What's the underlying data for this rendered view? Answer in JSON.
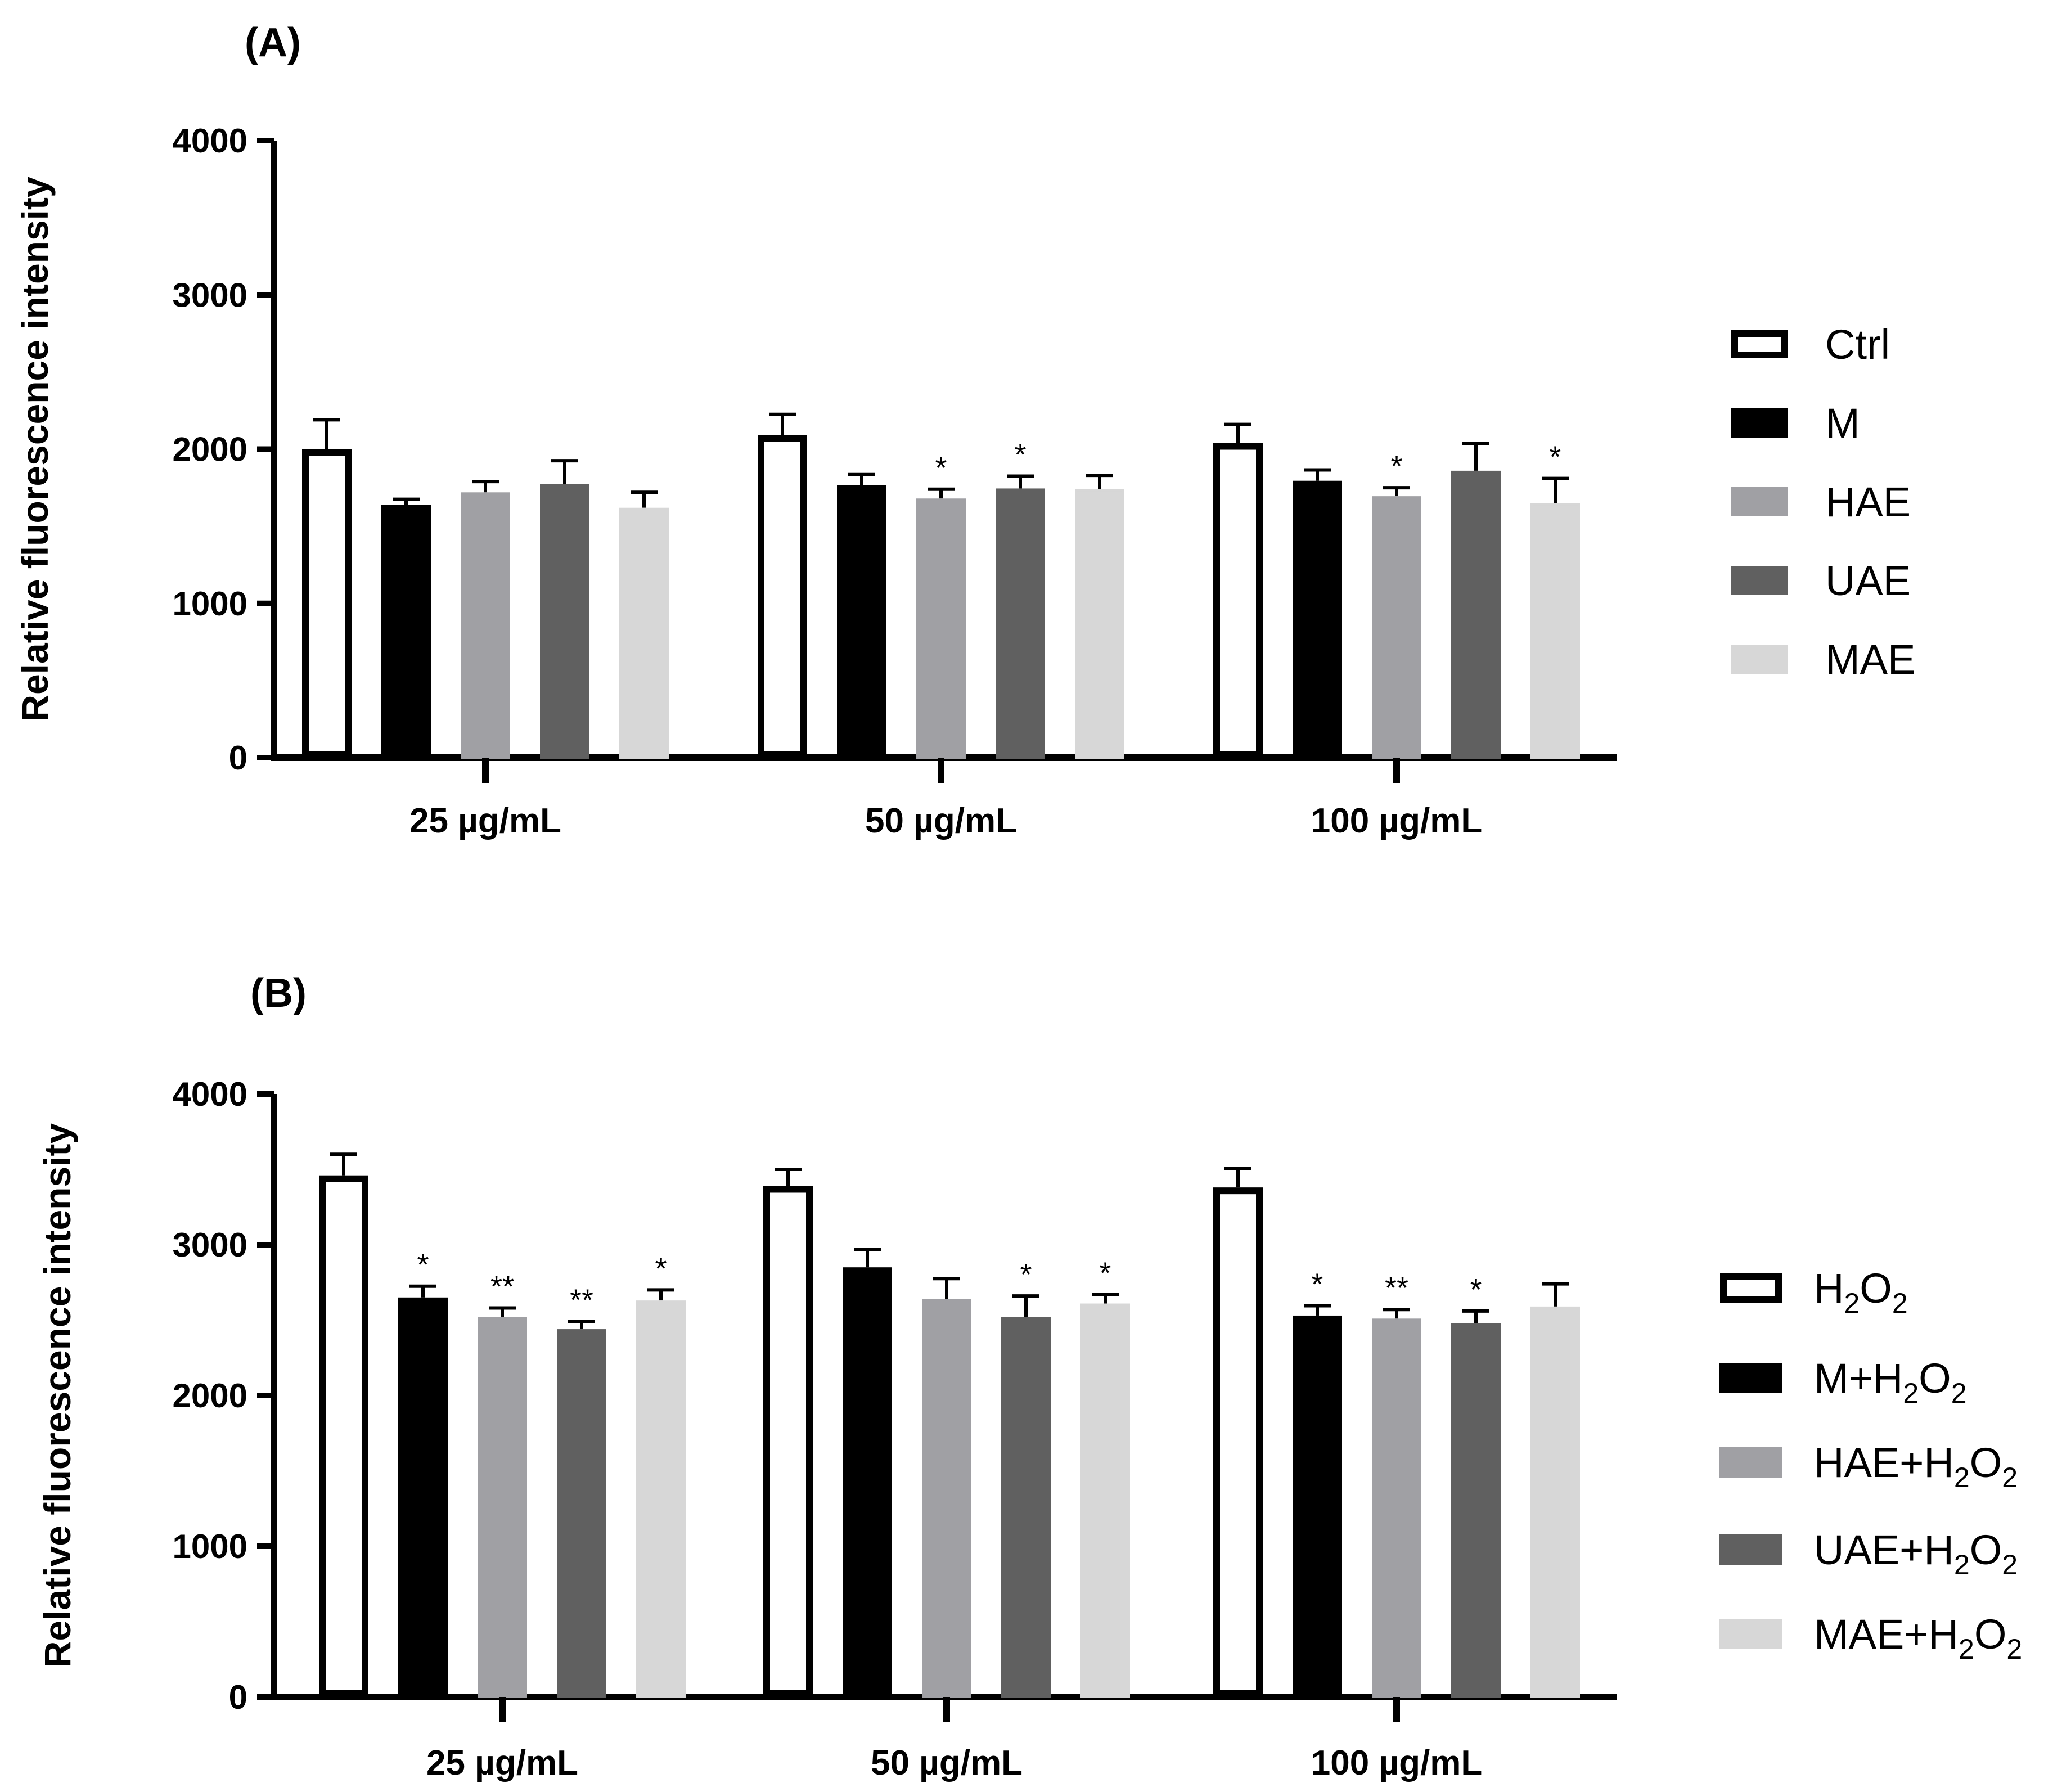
{
  "chart_data": [
    {
      "panel_label": "(A)",
      "type": "bar",
      "ylabel": "Relative  fluorescence intensity",
      "ylim": [
        0,
        4000
      ],
      "yticks": [
        0,
        1000,
        2000,
        3000,
        4000
      ],
      "categories": [
        "25 µg/mL",
        "50 µg/mL",
        "100 µg/mL"
      ],
      "legend_position": "right",
      "series": [
        {
          "name": "Ctrl",
          "sub": "",
          "tail": "",
          "fill": "#ffffff",
          "stroke": "#000000",
          "values": [
            2000,
            2090,
            2040
          ],
          "errors": [
            190,
            135,
            120
          ],
          "sig": [
            "",
            "",
            ""
          ]
        },
        {
          "name": "M",
          "sub": "",
          "tail": "",
          "fill": "#000000",
          "stroke": "#000000",
          "values": [
            1640,
            1765,
            1795
          ],
          "errors": [
            35,
            70,
            70
          ],
          "sig": [
            "",
            "",
            ""
          ]
        },
        {
          "name": "HAE",
          "sub": "",
          "tail": "",
          "fill": "#a0a0a4",
          "stroke": "#a0a0a4",
          "values": [
            1720,
            1680,
            1695
          ],
          "errors": [
            70,
            60,
            55
          ],
          "sig": [
            "",
            "*",
            "*"
          ]
        },
        {
          "name": "UAE",
          "sub": "",
          "tail": "",
          "fill": "#606060",
          "stroke": "#606060",
          "values": [
            1775,
            1745,
            1860
          ],
          "errors": [
            150,
            80,
            175
          ],
          "sig": [
            "",
            "*",
            ""
          ]
        },
        {
          "name": "MAE",
          "sub": "",
          "tail": "",
          "fill": "#d7d7d7",
          "stroke": "#d7d7d7",
          "values": [
            1620,
            1740,
            1650
          ],
          "errors": [
            100,
            90,
            160
          ],
          "sig": [
            "",
            "",
            "*"
          ]
        }
      ]
    },
    {
      "panel_label": "(B)",
      "type": "bar",
      "ylabel": "Relative  fluorescence intensity",
      "ylim": [
        0,
        4000
      ],
      "yticks": [
        0,
        1000,
        2000,
        3000,
        4000
      ],
      "categories": [
        "25 µg/mL",
        "50 µg/mL",
        "100 µg/mL"
      ],
      "legend_position": "right",
      "series": [
        {
          "name": "H",
          "sub": "2",
          "tail": "O",
          "fill": "#ffffff",
          "stroke": "#000000",
          "values": [
            3460,
            3390,
            3380
          ],
          "errors": [
            140,
            110,
            125
          ],
          "sig": [
            "",
            "",
            ""
          ]
        },
        {
          "name": "M+H",
          "sub": "2",
          "tail": "O",
          "fill": "#000000",
          "stroke": "#000000",
          "values": [
            2650,
            2850,
            2530
          ],
          "errors": [
            75,
            120,
            65
          ],
          "sig": [
            "*",
            "",
            "*"
          ]
        },
        {
          "name": "HAE+H",
          "sub": "2",
          "tail": "O",
          "fill": "#a0a0a4",
          "stroke": "#a0a0a4",
          "values": [
            2520,
            2640,
            2510
          ],
          "errors": [
            60,
            135,
            60
          ],
          "sig": [
            "**",
            "",
            "**"
          ]
        },
        {
          "name": "UAE+H",
          "sub": "2",
          "tail": "O",
          "fill": "#606060",
          "stroke": "#606060",
          "values": [
            2440,
            2520,
            2480
          ],
          "errors": [
            50,
            140,
            80
          ],
          "sig": [
            "**",
            "*",
            "*"
          ]
        },
        {
          "name": "MAE+H",
          "sub": "2",
          "tail": "O",
          "fill": "#d7d7d7",
          "stroke": "#d7d7d7",
          "values": [
            2630,
            2610,
            2590
          ],
          "errors": [
            70,
            60,
            150
          ],
          "sig": [
            "*",
            "*",
            ""
          ]
        }
      ]
    }
  ]
}
